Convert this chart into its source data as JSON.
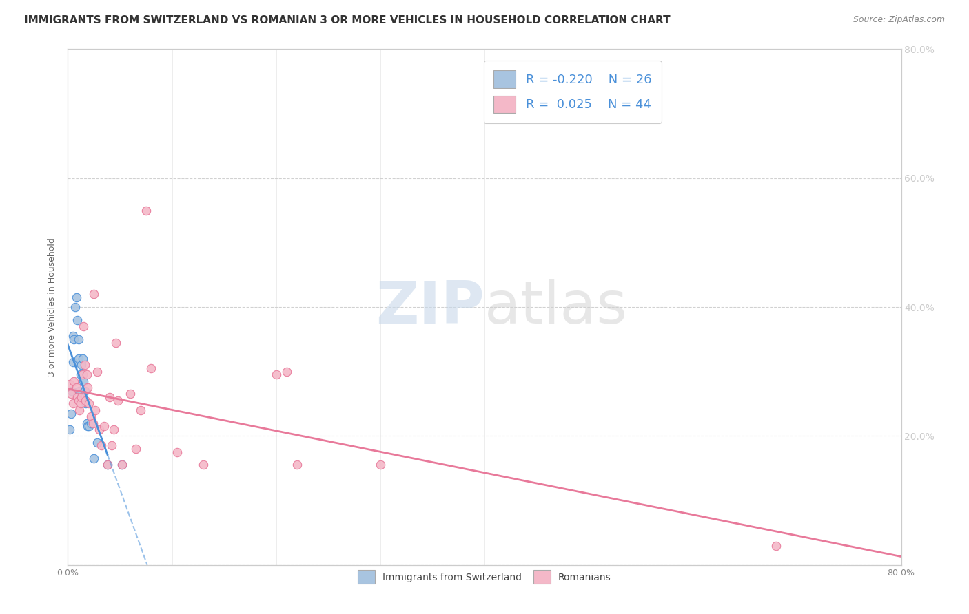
{
  "title": "IMMIGRANTS FROM SWITZERLAND VS ROMANIAN 3 OR MORE VEHICLES IN HOUSEHOLD CORRELATION CHART",
  "source": "Source: ZipAtlas.com",
  "ylabel": "3 or more Vehicles in Household",
  "legend_label1": "Immigrants from Switzerland",
  "legend_label2": "Romanians",
  "R1": -0.22,
  "N1": 26,
  "R2": 0.025,
  "N2": 44,
  "color1": "#a8c4e0",
  "color2": "#f4b8c8",
  "line_color1": "#4a90d9",
  "line_color2": "#e8799a",
  "watermark_zip": "ZIP",
  "watermark_atlas": "atlas",
  "xmin": 0.0,
  "xmax": 0.8,
  "ymin": 0.0,
  "ymax": 0.8,
  "right_yticks": [
    0.2,
    0.4,
    0.6,
    0.8
  ],
  "right_yticklabels": [
    "20.0%",
    "40.0%",
    "60.0%",
    "80.0%"
  ],
  "xtick_labels_shown": [
    "0.0%",
    "80.0%"
  ],
  "swiss_x": [
    0.002,
    0.003,
    0.004,
    0.005,
    0.005,
    0.006,
    0.007,
    0.008,
    0.009,
    0.01,
    0.01,
    0.011,
    0.012,
    0.013,
    0.014,
    0.015,
    0.016,
    0.017,
    0.018,
    0.019,
    0.02,
    0.022,
    0.025,
    0.028,
    0.038,
    0.052
  ],
  "swiss_y": [
    0.21,
    0.235,
    0.27,
    0.315,
    0.355,
    0.35,
    0.4,
    0.415,
    0.38,
    0.35,
    0.32,
    0.27,
    0.295,
    0.31,
    0.32,
    0.285,
    0.27,
    0.25,
    0.22,
    0.215,
    0.215,
    0.22,
    0.165,
    0.19,
    0.155,
    0.155
  ],
  "roman_x": [
    0.002,
    0.003,
    0.005,
    0.006,
    0.008,
    0.009,
    0.01,
    0.011,
    0.012,
    0.013,
    0.014,
    0.015,
    0.016,
    0.017,
    0.018,
    0.019,
    0.02,
    0.022,
    0.024,
    0.025,
    0.026,
    0.028,
    0.03,
    0.032,
    0.035,
    0.038,
    0.04,
    0.042,
    0.044,
    0.046,
    0.048,
    0.052,
    0.06,
    0.065,
    0.07,
    0.075,
    0.08,
    0.105,
    0.13,
    0.2,
    0.21,
    0.22,
    0.3,
    0.68
  ],
  "roman_y": [
    0.28,
    0.265,
    0.25,
    0.285,
    0.275,
    0.26,
    0.255,
    0.24,
    0.25,
    0.26,
    0.295,
    0.37,
    0.31,
    0.255,
    0.295,
    0.275,
    0.25,
    0.23,
    0.22,
    0.42,
    0.24,
    0.3,
    0.21,
    0.185,
    0.215,
    0.155,
    0.26,
    0.185,
    0.21,
    0.345,
    0.255,
    0.155,
    0.265,
    0.18,
    0.24,
    0.55,
    0.305,
    0.175,
    0.155,
    0.295,
    0.3,
    0.155,
    0.155,
    0.03
  ],
  "title_fontsize": 11,
  "source_fontsize": 9,
  "axis_fontsize": 9,
  "background_color": "#ffffff"
}
